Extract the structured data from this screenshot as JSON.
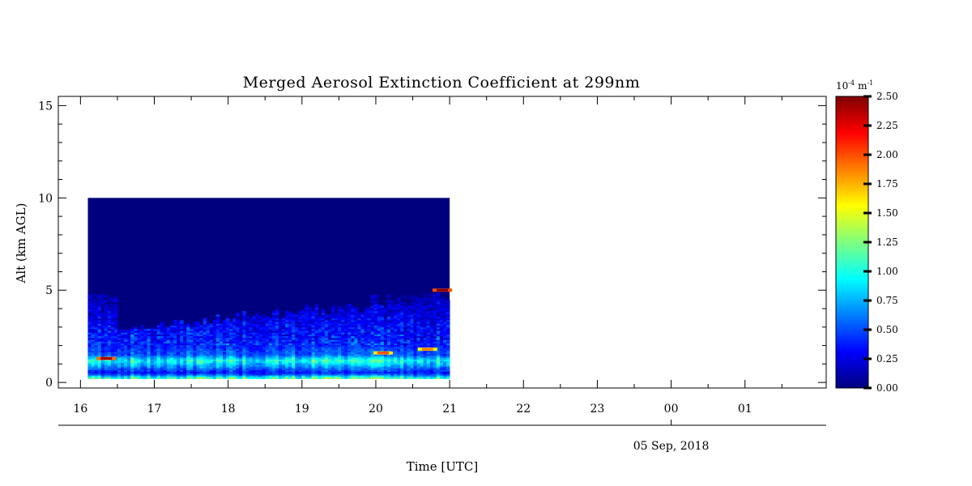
{
  "chart_data": {
    "type": "heatmap",
    "title": "Merged Aerosol Extinction Coefficient at 299nm",
    "xlabel": "Time [UTC]",
    "ylabel": "Alt (km AGL)",
    "date_label": "05 Sep, 2018",
    "x_tick_labels": [
      "16",
      "17",
      "18",
      "19",
      "20",
      "21",
      "22",
      "23",
      "00",
      "01"
    ],
    "x_tick_hours": [
      16,
      17,
      18,
      19,
      20,
      21,
      22,
      23,
      24,
      25
    ],
    "xlim_hours": [
      15.7,
      26.1
    ],
    "date_tick_hour": 24,
    "y_ticks": [
      0,
      5,
      10,
      15
    ],
    "y_tick_labels": [
      "0",
      "5",
      "10",
      "15"
    ],
    "ylim": [
      -0.3,
      15.5
    ],
    "data_extent": {
      "time_start_hour": 16.1,
      "time_end_hour": 21.0,
      "alt_min_km": 0.2,
      "alt_max_km": 10.0
    },
    "colorbar": {
      "unit_label": "10",
      "unit_exp": "-4",
      "unit_suffix": "m",
      "unit_suffix_exp": "-1",
      "range": [
        0,
        2.5
      ],
      "tick_labels": [
        "0.00",
        "0.25",
        "0.50",
        "0.75",
        "1.00",
        "1.25",
        "1.50",
        "1.75",
        "2.00",
        "2.25",
        "2.50"
      ],
      "colormap": "jet",
      "colors": [
        "#00007f",
        "#0000ff",
        "#007fff",
        "#00ffff",
        "#7fff7f",
        "#ffff00",
        "#ff7f00",
        "#ff0000",
        "#7f0000"
      ]
    },
    "profile": [
      {
        "alt_km": 0.2,
        "value": 1.25
      },
      {
        "alt_km": 0.5,
        "value": 0.35
      },
      {
        "alt_km": 0.8,
        "value": 0.6
      },
      {
        "alt_km": 1.2,
        "value": 1.0
      },
      {
        "alt_km": 1.5,
        "value": 0.55
      },
      {
        "alt_km": 2.0,
        "value": 0.4
      },
      {
        "alt_km": 3.0,
        "value": 0.3
      },
      {
        "alt_km": 4.0,
        "value": 0.2
      },
      {
        "alt_km": 6.0,
        "value": 0.0
      },
      {
        "alt_km": 10.0,
        "value": 0.0
      }
    ],
    "hotspots": [
      {
        "time_hour": 16.35,
        "alt_km": 1.3,
        "value": 2.4
      },
      {
        "time_hour": 20.9,
        "alt_km": 5.0,
        "value": 2.5
      },
      {
        "time_hour": 20.1,
        "alt_km": 1.6,
        "value": 2.0
      },
      {
        "time_hour": 20.7,
        "alt_km": 1.8,
        "value": 1.9
      }
    ]
  }
}
